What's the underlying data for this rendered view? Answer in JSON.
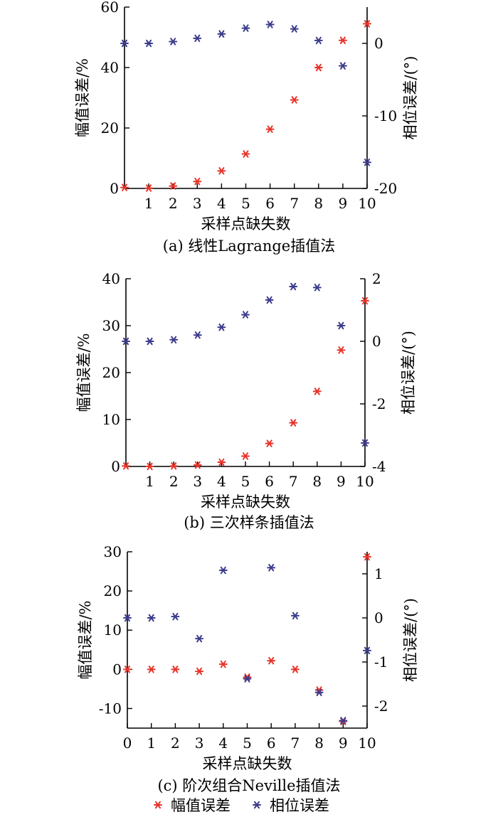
{
  "chart_data": [
    {
      "type": "scatter",
      "caption": "(a) 线性Lagrange插值法",
      "xlabel": "采样点缺失数",
      "ylabel": "幅值误差/%",
      "y2label": "相位误差/(°)",
      "xlim": [
        0,
        10
      ],
      "ylim": [
        0,
        60
      ],
      "y2lim": [
        -20,
        5
      ],
      "xticks": [
        "1",
        "2",
        "3",
        "4",
        "5",
        "6",
        "7",
        "8",
        "9",
        "10"
      ],
      "yticks": [
        "0",
        "20",
        "40",
        "60"
      ],
      "y2ticks": [
        "-20",
        "-10",
        "0"
      ],
      "x": [
        0,
        1,
        2,
        3,
        4,
        5,
        6,
        7,
        8,
        9,
        10
      ],
      "series": [
        {
          "name": "幅值误差",
          "axis": "left",
          "color": "#e8332a",
          "values": [
            0.3,
            0.1,
            0.8,
            2.3,
            5.8,
            11.4,
            19.6,
            29.3,
            40.0,
            49.0,
            54.5
          ]
        },
        {
          "name": "相位误差",
          "axis": "right",
          "color": "#3c3c8c",
          "values": [
            0.0,
            0.0,
            0.25,
            0.7,
            1.3,
            2.1,
            2.6,
            2.0,
            0.4,
            -3.1,
            -16.4
          ]
        }
      ]
    },
    {
      "type": "scatter",
      "caption": "(b) 三次样条插值法",
      "xlabel": "采样点缺失数",
      "ylabel": "幅值误差/%",
      "y2label": "相位误差/(°)",
      "xlim": [
        0,
        10
      ],
      "ylim": [
        0,
        40
      ],
      "y2lim": [
        -4,
        2
      ],
      "xticks": [
        "1",
        "2",
        "3",
        "4",
        "5",
        "6",
        "7",
        "8",
        "9",
        "10"
      ],
      "yticks": [
        "0",
        "10",
        "20",
        "30",
        "40"
      ],
      "y2ticks": [
        "-4",
        "-2",
        "0",
        "2"
      ],
      "x": [
        0,
        1,
        2,
        3,
        4,
        5,
        6,
        7,
        8,
        9,
        10
      ],
      "series": [
        {
          "name": "幅值误差",
          "axis": "left",
          "color": "#e8332a",
          "values": [
            0.1,
            0.0,
            0.1,
            0.3,
            0.9,
            2.2,
            4.9,
            9.3,
            16.0,
            24.8,
            35.3
          ]
        },
        {
          "name": "相位误差",
          "axis": "right",
          "color": "#3c3c8c",
          "values": [
            0.0,
            0.0,
            0.05,
            0.2,
            0.45,
            0.85,
            1.32,
            1.75,
            1.72,
            0.5,
            -3.25
          ]
        }
      ]
    },
    {
      "type": "scatter",
      "caption": "(c) 阶次组合Neville插值法",
      "xlabel": "采样点缺失数",
      "ylabel": "幅值误差/%",
      "y2label": "相位误差/(°)",
      "xlim": [
        0,
        10
      ],
      "ylim": [
        -15,
        30
      ],
      "y2lim": [
        -2.5,
        1.5
      ],
      "xticks": [
        "0",
        "1",
        "2",
        "3",
        "4",
        "5",
        "6",
        "7",
        "8",
        "9",
        "10"
      ],
      "yticks": [
        "-10",
        "0",
        "10",
        "20",
        "30"
      ],
      "y2ticks": [
        "-2",
        "-1",
        "0",
        "1"
      ],
      "x": [
        0,
        1,
        2,
        3,
        4,
        5,
        6,
        7,
        8,
        9,
        10
      ],
      "series": [
        {
          "name": "幅值误差",
          "axis": "left",
          "color": "#e8332a",
          "values": [
            0.0,
            0.0,
            0.0,
            -0.5,
            1.3,
            -2.0,
            2.2,
            0.0,
            -5.3,
            -13.3,
            28.7
          ]
        },
        {
          "name": "相位误差",
          "axis": "right",
          "color": "#3c3c8c",
          "values": [
            0.0,
            0.0,
            0.03,
            -0.47,
            1.08,
            -1.38,
            1.14,
            0.05,
            -1.69,
            -2.33,
            -0.74
          ]
        }
      ]
    }
  ],
  "legend": {
    "items": [
      {
        "label": "幅值误差",
        "color": "#e8332a"
      },
      {
        "label": "相位误差",
        "color": "#3c3c8c"
      }
    ]
  }
}
